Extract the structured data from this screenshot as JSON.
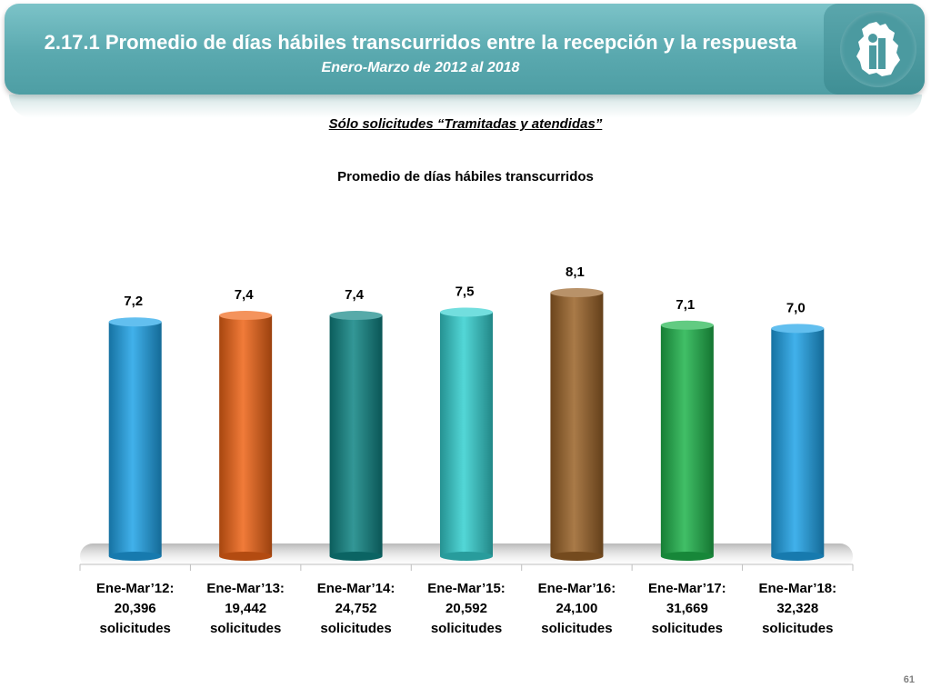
{
  "header": {
    "title": "2.17.1 Promedio de días hábiles transcurridos entre la recepción y la respuesta",
    "subtitle": "Enero-Marzo de 2012 al 2018"
  },
  "filter_label": "Sólo solicitudes “Tramitadas y atendidas”",
  "page_number": "61",
  "chart_data": {
    "type": "bar",
    "title": "Promedio de días hábiles transcurridos",
    "categories": [
      [
        "Ene-Mar’12:",
        "20,396",
        "solicitudes"
      ],
      [
        "Ene-Mar’13:",
        "19,442",
        "solicitudes"
      ],
      [
        "Ene-Mar’14:",
        "24,752",
        "solicitudes"
      ],
      [
        "Ene-Mar’15:",
        "20,592",
        "solicitudes"
      ],
      [
        "Ene-Mar’16:",
        "24,100",
        "solicitudes"
      ],
      [
        "Ene-Mar’17:",
        "31,669",
        "solicitudes"
      ],
      [
        "Ene-Mar’18:",
        "32,328",
        "solicitudes"
      ]
    ],
    "values": [
      7.2,
      7.4,
      7.4,
      7.5,
      8.1,
      7.1,
      7.0
    ],
    "value_labels": [
      "7,2",
      "7,4",
      "7,4",
      "7,5",
      "8,1",
      "7,1",
      "7,0"
    ],
    "colors": [
      "#1fa3e8",
      "#ef6416",
      "#0f8584",
      "#35d0d0",
      "#9a6328",
      "#1fb44c",
      "#1fa3e8"
    ],
    "ylim": [
      0,
      8.1
    ],
    "grid": false,
    "legend": "none"
  }
}
